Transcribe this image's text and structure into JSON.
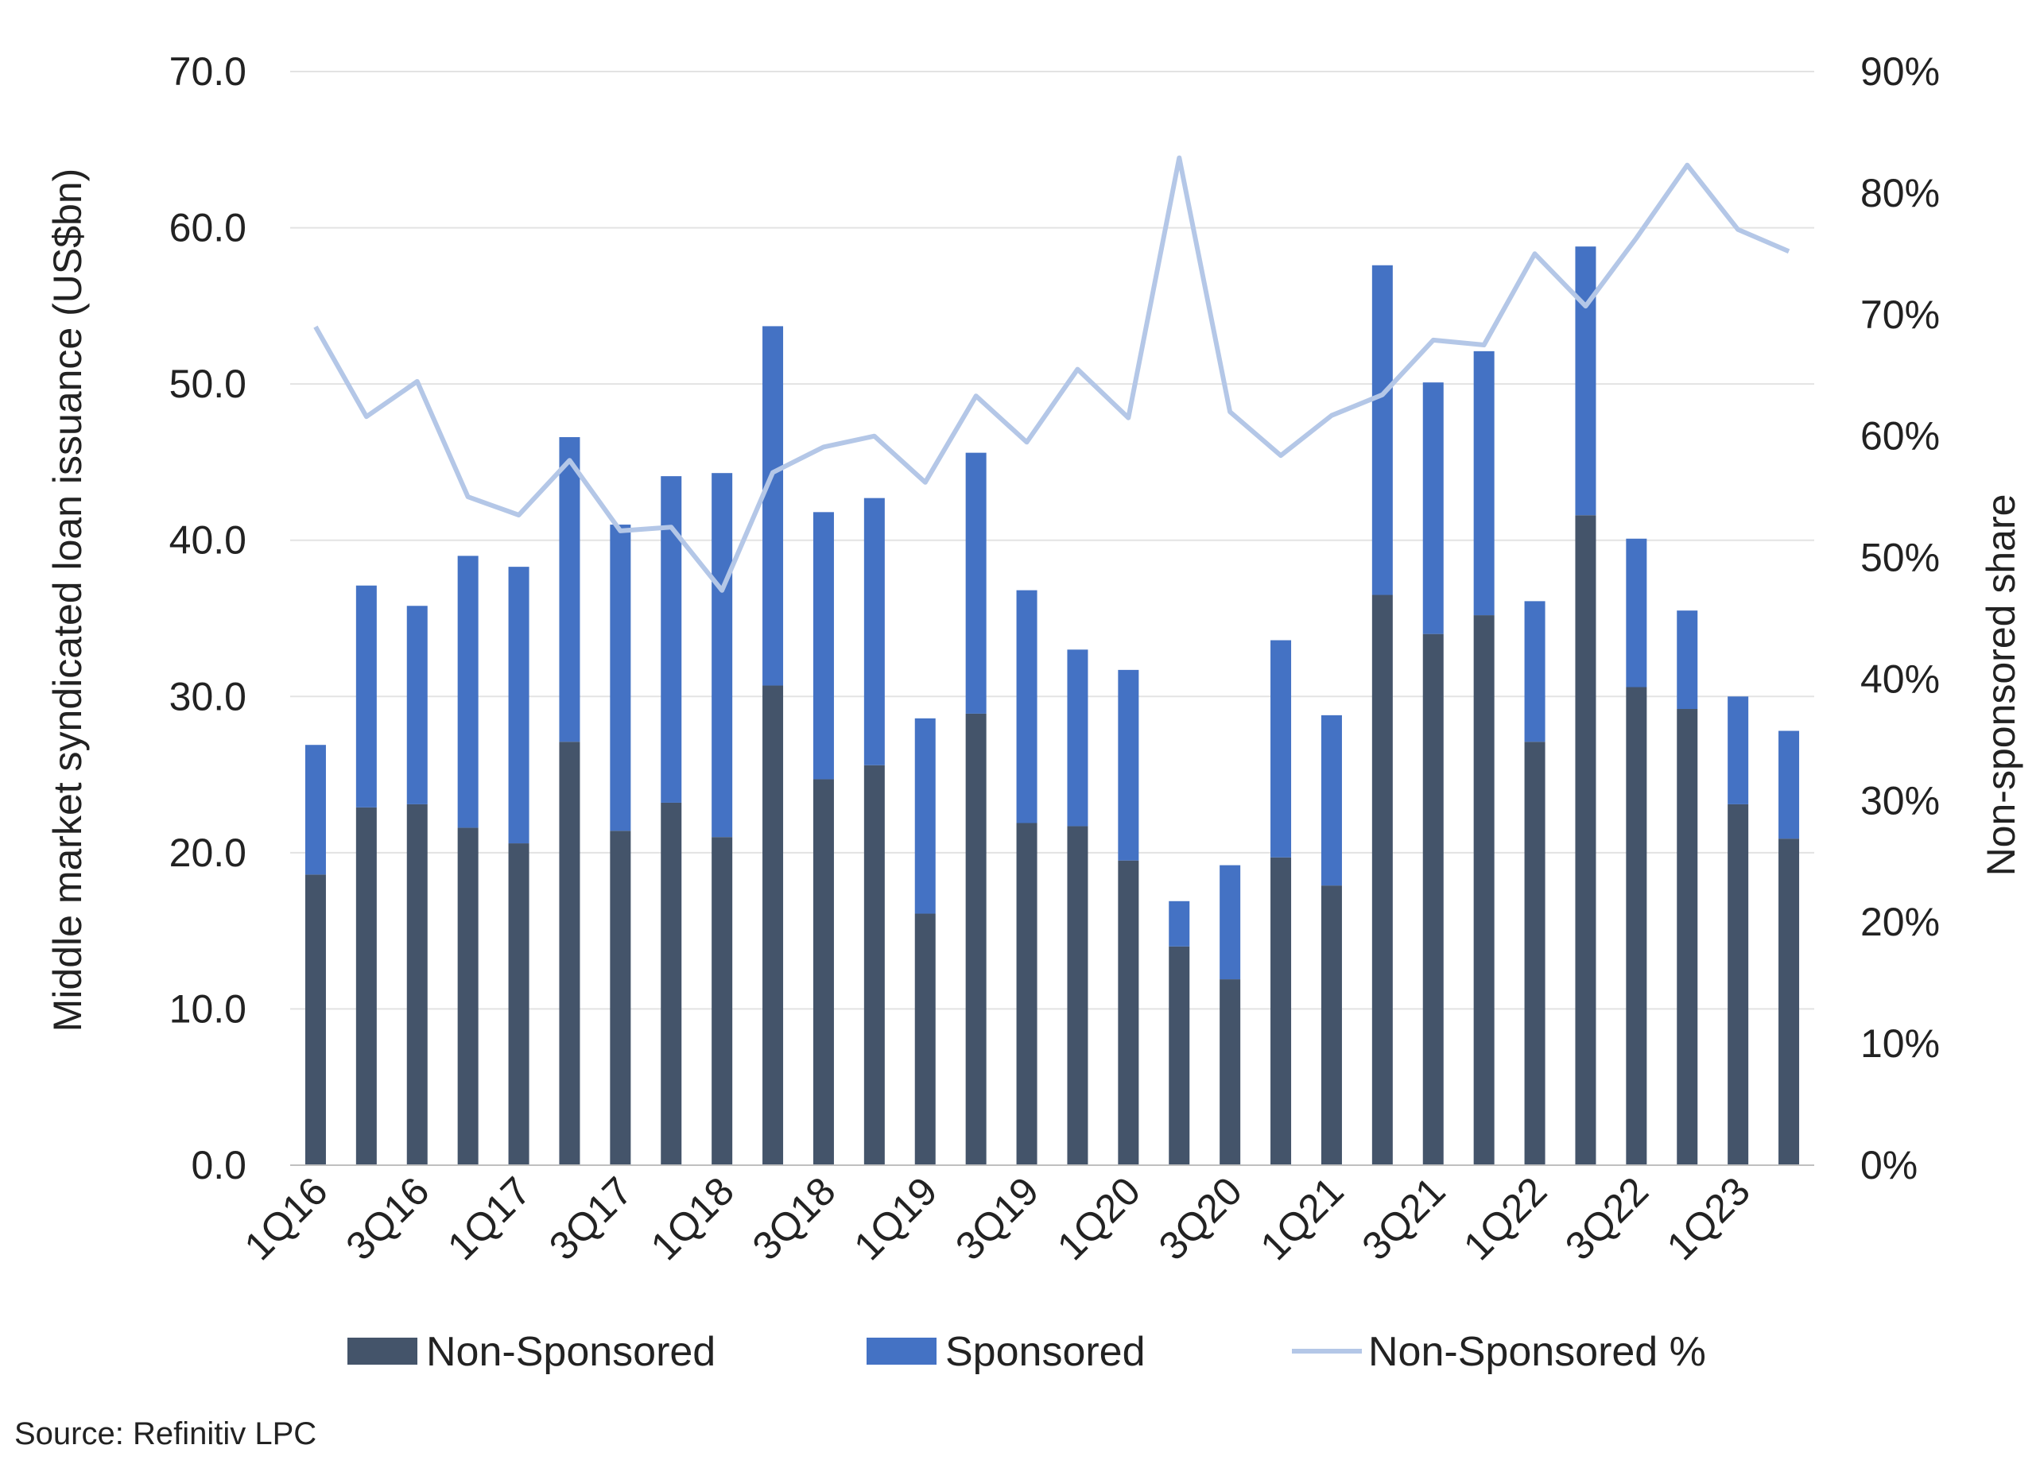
{
  "chart_data": {
    "type": "bar",
    "stacked": true,
    "categories": [
      "1Q16",
      "2Q16",
      "3Q16",
      "4Q16",
      "1Q17",
      "2Q17",
      "3Q17",
      "4Q17",
      "1Q18",
      "2Q18",
      "3Q18",
      "4Q18",
      "1Q19",
      "2Q19",
      "3Q19",
      "4Q19",
      "1Q20",
      "2Q20",
      "3Q20",
      "4Q20",
      "1Q21",
      "2Q21",
      "3Q21",
      "4Q21",
      "1Q22",
      "2Q22",
      "3Q22",
      "4Q22",
      "1Q23",
      "2Q23"
    ],
    "tick_labels": [
      "1Q16",
      "3Q16",
      "1Q17",
      "3Q17",
      "1Q18",
      "3Q18",
      "1Q19",
      "3Q19",
      "1Q20",
      "3Q20",
      "1Q21",
      "3Q21",
      "1Q22",
      "3Q22",
      "1Q23"
    ],
    "series": [
      {
        "name": "Non-Sponsored",
        "axis": "left",
        "color": "#44546a",
        "values": [
          18.6,
          22.9,
          23.1,
          21.6,
          20.6,
          27.1,
          21.4,
          23.2,
          21.0,
          30.7,
          24.7,
          25.6,
          16.1,
          28.9,
          21.9,
          21.7,
          19.5,
          14.0,
          11.9,
          19.7,
          17.9,
          36.5,
          34.0,
          35.2,
          27.1,
          41.6,
          30.6,
          29.2,
          23.1,
          20.9
        ]
      },
      {
        "name": "Sponsored",
        "axis": "left",
        "color": "#4472c4",
        "values": [
          8.3,
          14.2,
          12.7,
          17.4,
          17.7,
          19.5,
          19.6,
          20.9,
          23.3,
          23.0,
          17.1,
          17.1,
          12.5,
          16.7,
          14.9,
          11.3,
          12.2,
          2.9,
          7.3,
          13.9,
          10.9,
          21.1,
          16.1,
          16.9,
          9.0,
          17.2,
          9.5,
          6.3,
          6.9,
          6.9
        ]
      },
      {
        "name": "Non-Sponsored %",
        "axis": "right",
        "type": "line",
        "color": "#b4c7e7",
        "values": [
          69.0,
          61.6,
          64.5,
          55.0,
          53.5,
          58.0,
          52.2,
          52.5,
          47.3,
          57.0,
          59.1,
          60.0,
          56.2,
          63.3,
          59.5,
          65.5,
          61.5,
          82.9,
          62.0,
          58.4,
          61.7,
          63.4,
          67.9,
          67.5,
          75.0,
          70.7,
          76.3,
          82.3,
          77.0,
          75.2
        ]
      }
    ],
    "ylabel": "Middle market syndicated loan issuance (US$bn)",
    "y2label": "Non-sponsored share",
    "ylim": [
      0,
      70
    ],
    "y2lim": [
      0,
      90
    ],
    "yticks": [
      "0.0",
      "10.0",
      "20.0",
      "30.0",
      "40.0",
      "50.0",
      "60.0",
      "70.0"
    ],
    "y2ticks": [
      "0%",
      "10%",
      "20%",
      "30%",
      "40%",
      "50%",
      "60%",
      "70%",
      "80%",
      "90%"
    ],
    "grid": true,
    "legend": "bottom",
    "legend_entries": [
      "Non-Sponsored",
      "Sponsored",
      "Non-Sponsored %"
    ]
  },
  "source": "Source: Refinitiv LPC"
}
